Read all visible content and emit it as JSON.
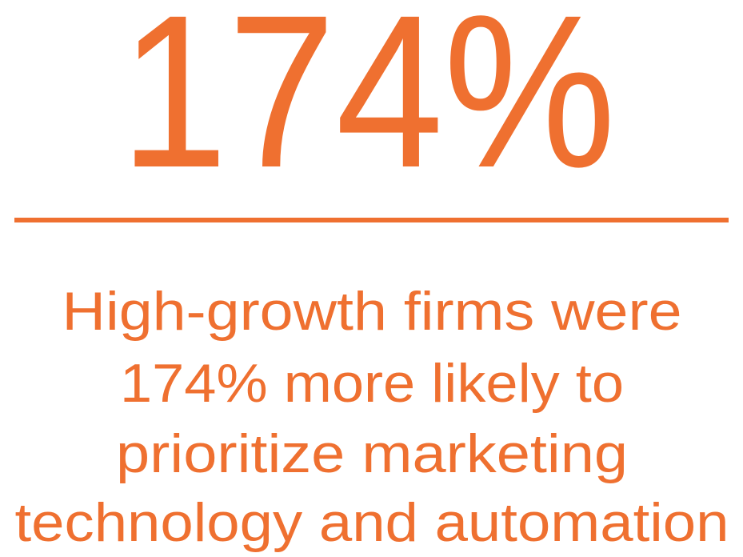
{
  "stat": "174%",
  "description": [
    "High-growth firms were",
    "174% more likely to",
    "prioritize marketing",
    "technology and automation"
  ]
}
